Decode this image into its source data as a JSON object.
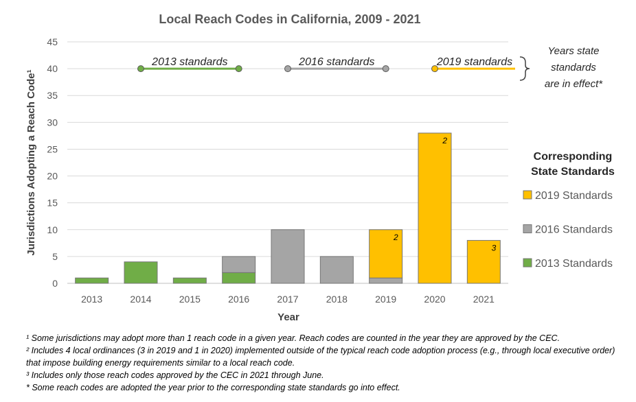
{
  "chart_data": {
    "type": "bar",
    "stacked": true,
    "title": "Local Reach Codes in California, 2009 - 2021",
    "xlabel": "Year",
    "ylabel": "Jurisdictions Adopting a Reach Code¹",
    "ylim": [
      0,
      45
    ],
    "yticks": [
      0,
      5,
      10,
      15,
      20,
      25,
      30,
      35,
      40,
      45
    ],
    "grid": true,
    "categories": [
      "2013",
      "2014",
      "2015",
      "2016",
      "2017",
      "2018",
      "2019",
      "2020",
      "2021"
    ],
    "series": [
      {
        "name": "2013 Standards",
        "color": "#70ad47",
        "values": [
          1,
          4,
          1,
          2,
          0,
          0,
          0,
          0,
          0
        ]
      },
      {
        "name": "2016 Standards",
        "color": "#a5a5a5",
        "values": [
          0,
          0,
          0,
          3,
          10,
          5,
          1,
          0,
          0
        ]
      },
      {
        "name": "2019 Standards",
        "color": "#ffc000",
        "values": [
          0,
          0,
          0,
          0,
          0,
          0,
          9,
          28,
          8
        ]
      }
    ],
    "bar_notes": [
      {
        "category": "2019",
        "label": "2"
      },
      {
        "category": "2020",
        "label": "2"
      },
      {
        "category": "2021",
        "label": "3"
      }
    ],
    "legend": {
      "title": "Corresponding State Standards",
      "placement": "right",
      "order": [
        "2019 Standards",
        "2016 Standards",
        "2013 Standards"
      ]
    },
    "standards_periods": [
      {
        "label": "2013 standards",
        "color": "#70ad47",
        "from": "2014",
        "to": "2016",
        "y": 40
      },
      {
        "label": "2016 standards",
        "color": "#a5a5a5",
        "from": "2017",
        "to": "2019",
        "y": 40
      },
      {
        "label": "2019 standards",
        "color": "#ffc000",
        "from": "2020",
        "to": "beyond",
        "y": 40
      }
    ],
    "annotation": [
      "Years state",
      "standards",
      "are in effect*"
    ]
  },
  "footnotes": [
    "¹ Some jurisdictions may adopt more than 1 reach code in a given year. Reach codes are counted in the year they are approved by the CEC.",
    "² Includes 4 local ordinances (3 in 2019 and 1 in 2020) implemented outside of the typical reach code adoption process (e.g., through local executive order) that impose building energy requirements similar to a local reach code.",
    "³ Includes only those reach codes approved by the CEC in 2021 through June.",
    "* Some reach codes are adopted the year prior to the corresponding state standards go into effect."
  ]
}
